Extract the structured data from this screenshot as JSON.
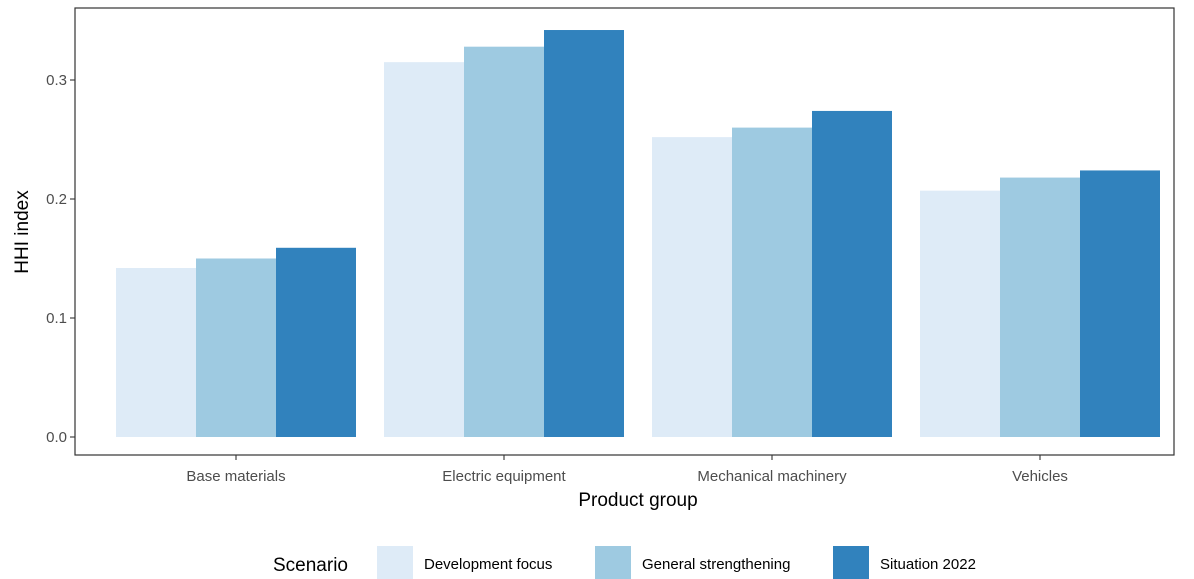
{
  "chart_data": {
    "type": "bar",
    "title": "",
    "xlabel": "Product group",
    "ylabel": "HHI index",
    "categories": [
      "Base materials",
      "Electric equipment",
      "Mechanical machinery",
      "Vehicles"
    ],
    "series": [
      {
        "name": "Development focus",
        "color": "#deebf7",
        "values": [
          0.142,
          0.315,
          0.252,
          0.207
        ]
      },
      {
        "name": "General strengthening",
        "color": "#9ecae1",
        "values": [
          0.15,
          0.328,
          0.26,
          0.218
        ]
      },
      {
        "name": "Situation 2022",
        "color": "#3182bd",
        "values": [
          0.159,
          0.342,
          0.274,
          0.224
        ]
      }
    ],
    "yticks": [
      "0.0",
      "0.1",
      "0.2",
      "0.3"
    ],
    "ylim": [
      0,
      0.36
    ],
    "grid": false,
    "legend": {
      "title": "Scenario",
      "position": "bottom"
    }
  }
}
